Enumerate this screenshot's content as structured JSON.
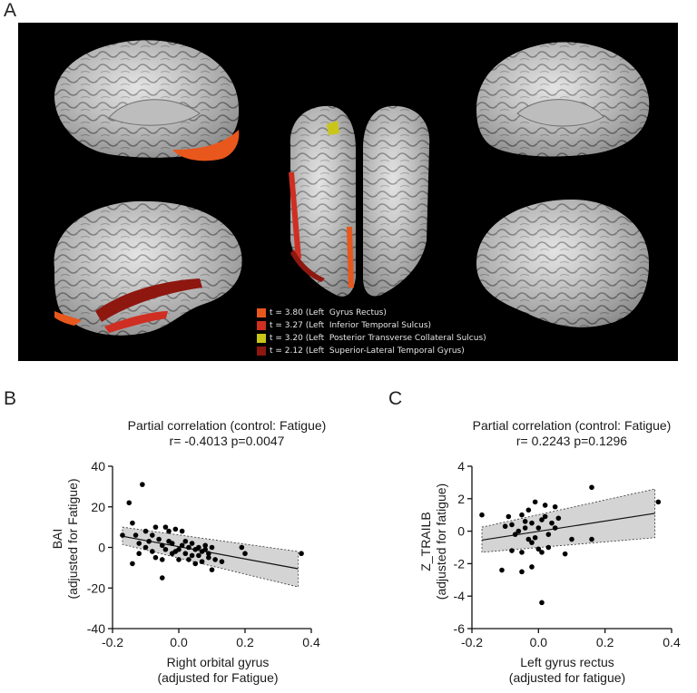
{
  "panel_a": {
    "letter": "A",
    "legend": [
      {
        "label": "t = 3.80 (Left  Gyrus Rectus)",
        "color": "#e8571c"
      },
      {
        "label": "t = 3.27 (Left  Inferior Temporal Sulcus)",
        "color": "#cf2f22"
      },
      {
        "label": "t = 3.20 (Left  Posterior Transverse Collateral Sulcus)",
        "color": "#c9c619"
      },
      {
        "label": "t = 2.12 (Left  Superior-Lateral Temporal Gyrus)",
        "color": "#8e1710"
      }
    ]
  },
  "panel_b": {
    "letter": "B"
  },
  "panel_c": {
    "letter": "C"
  },
  "chart_data": [
    {
      "type": "scatter",
      "title": "Partial correlation (control: Fatigue)",
      "subtitle": "r= -0.4013 p=0.0047",
      "xlabel_line1": "Right orbital gyrus",
      "xlabel_line2": "(adjusted for Fatigue)",
      "ylabel_line1": "BAI",
      "ylabel_line2": "(adjusted for Fatigue)",
      "xlim": [
        -0.2,
        0.4
      ],
      "ylim": [
        -40,
        40
      ],
      "xticks": [
        "-0.2",
        "0.0",
        "0.2",
        "0.4"
      ],
      "yticks": [
        "-40",
        "-20",
        "0",
        "20",
        "40"
      ],
      "xtick_values": [
        -0.2,
        0.0,
        0.2,
        0.4
      ],
      "ytick_values": [
        -40,
        -20,
        0,
        20,
        40
      ],
      "fit_line": {
        "x": [
          -0.17,
          0.36
        ],
        "y": [
          5.5,
          -10.5
        ]
      },
      "ci_band": {
        "x": [
          -0.17,
          0.36
        ],
        "upper": [
          10.0,
          -2.0
        ],
        "lower": [
          1.5,
          -19.5
        ]
      },
      "points": [
        [
          -0.17,
          6
        ],
        [
          -0.15,
          22
        ],
        [
          -0.14,
          12
        ],
        [
          -0.14,
          -8
        ],
        [
          -0.13,
          6
        ],
        [
          -0.12,
          2
        ],
        [
          -0.12,
          -3
        ],
        [
          -0.11,
          31
        ],
        [
          -0.1,
          8
        ],
        [
          -0.1,
          0
        ],
        [
          -0.09,
          3
        ],
        [
          -0.08,
          -2
        ],
        [
          -0.08,
          6
        ],
        [
          -0.07,
          10
        ],
        [
          -0.07,
          -5
        ],
        [
          -0.06,
          4
        ],
        [
          -0.05,
          1
        ],
        [
          -0.05,
          -6
        ],
        [
          -0.04,
          10
        ],
        [
          -0.04,
          -1
        ],
        [
          -0.03,
          8
        ],
        [
          -0.03,
          3
        ],
        [
          -0.02,
          2
        ],
        [
          -0.02,
          -3
        ],
        [
          -0.01,
          9
        ],
        [
          -0.01,
          -2
        ],
        [
          0.0,
          -1
        ],
        [
          0.0,
          -6
        ],
        [
          0.01,
          8
        ],
        [
          0.01,
          1
        ],
        [
          0.02,
          3
        ],
        [
          0.02,
          -3
        ],
        [
          0.03,
          -6
        ],
        [
          0.03,
          0
        ],
        [
          0.04,
          -4
        ],
        [
          0.04,
          2
        ],
        [
          0.05,
          -1
        ],
        [
          0.05,
          -8
        ],
        [
          0.06,
          0
        ],
        [
          0.06,
          -4
        ],
        [
          0.07,
          -2
        ],
        [
          0.07,
          -7
        ],
        [
          0.08,
          -1
        ],
        [
          0.08,
          1
        ],
        [
          0.09,
          -3
        ],
        [
          0.09,
          -5
        ],
        [
          0.1,
          -11
        ],
        [
          0.1,
          0
        ],
        [
          0.11,
          -6
        ],
        [
          0.13,
          -7
        ],
        [
          0.19,
          0
        ],
        [
          0.2,
          -3
        ],
        [
          0.37,
          -3
        ],
        [
          -0.05,
          -15
        ]
      ]
    },
    {
      "type": "scatter",
      "title": "Partial correlation (control: Fatigue)",
      "subtitle": "r= 0.2243 p=0.1296",
      "xlabel_line1": "Left gyrus rectus",
      "xlabel_line2": "(adjusted for fatigue)",
      "ylabel_line1": "Z_TRAILB",
      "ylabel_line2": "(adjusted for fatigue)",
      "xlim": [
        -0.2,
        0.4
      ],
      "ylim": [
        -6,
        4
      ],
      "xticks": [
        "-0.2",
        "0.0",
        "0.2",
        "0.4"
      ],
      "yticks": [
        "-6",
        "-4",
        "-2",
        "0",
        "2",
        "4"
      ],
      "xtick_values": [
        -0.2,
        0.0,
        0.2,
        0.4
      ],
      "ytick_values": [
        -6,
        -4,
        -2,
        0,
        2,
        4
      ],
      "fit_line": {
        "x": [
          -0.17,
          0.35
        ],
        "y": [
          -0.55,
          1.1
        ]
      },
      "ci_band": {
        "x": [
          -0.17,
          0.35
        ],
        "upper": [
          0.25,
          2.6
        ],
        "lower": [
          -1.3,
          -0.4
        ]
      },
      "points": [
        [
          -0.17,
          1.0
        ],
        [
          -0.11,
          -2.4
        ],
        [
          -0.1,
          0.3
        ],
        [
          -0.09,
          0.9
        ],
        [
          -0.08,
          -1.2
        ],
        [
          -0.08,
          0.4
        ],
        [
          -0.07,
          -0.2
        ],
        [
          -0.06,
          0.0
        ],
        [
          -0.05,
          -1.3
        ],
        [
          -0.05,
          -2.5
        ],
        [
          -0.05,
          1.0
        ],
        [
          -0.04,
          0.6
        ],
        [
          -0.04,
          0.2
        ],
        [
          -0.03,
          -0.5
        ],
        [
          -0.03,
          1.3
        ],
        [
          -0.02,
          -0.7
        ],
        [
          -0.02,
          -2.2
        ],
        [
          -0.02,
          0.5
        ],
        [
          -0.01,
          1.8
        ],
        [
          -0.01,
          -0.4
        ],
        [
          0.0,
          0.2
        ],
        [
          0.0,
          -1.1
        ],
        [
          0.01,
          0.7
        ],
        [
          0.01,
          -1.3
        ],
        [
          0.01,
          -4.4
        ],
        [
          0.02,
          1.6
        ],
        [
          0.02,
          0.9
        ],
        [
          0.03,
          -0.2
        ],
        [
          0.03,
          -1.0
        ],
        [
          0.04,
          0.5
        ],
        [
          0.05,
          1.5
        ],
        [
          0.05,
          0.2
        ],
        [
          0.06,
          0.8
        ],
        [
          0.08,
          -1.4
        ],
        [
          0.1,
          -0.5
        ],
        [
          0.16,
          2.7
        ],
        [
          0.16,
          -0.5
        ],
        [
          0.36,
          1.8
        ]
      ]
    }
  ]
}
